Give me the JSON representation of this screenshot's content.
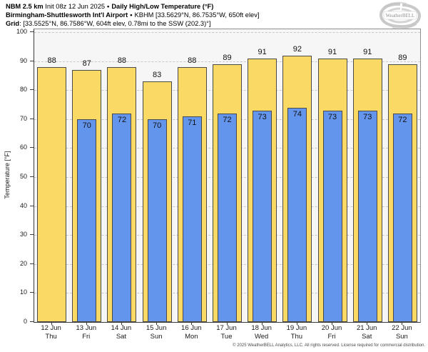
{
  "header": {
    "model": "NBM 2.5 km",
    "init": "Init 08z 12 Jun 2025",
    "separator": "•",
    "product": "Daily High/Low Temperature (°F)",
    "station": "Birmingham-Shuttlesworth Int'l Airport",
    "station_info": "KBHM [33.5629°N, 86.7535°W, 650ft elev]",
    "grid_label": "Grid",
    "grid_info": ": [33.5525°N, 86.7586°W, 604ft elev, 0.78mi to the SSW (202.3)°]"
  },
  "logo": {
    "text": "WeatherBELL"
  },
  "chart_data": {
    "type": "bar",
    "title": "Daily High/Low Temperature (°F)",
    "categories": [
      "12 Jun",
      "13 Jun",
      "14 Jun",
      "15 Jun",
      "16 Jun",
      "17 Jun",
      "18 Jun",
      "19 Jun",
      "20 Jun",
      "21 Jun",
      "22 Jun"
    ],
    "category_days": [
      "Thu",
      "Fri",
      "Sat",
      "Sun",
      "Mon",
      "Tue",
      "Wed",
      "Thu",
      "Fri",
      "Sat",
      "Sun"
    ],
    "series": [
      {
        "name": "High",
        "color": "#fbd965",
        "values": [
          88,
          87,
          88,
          83,
          88,
          89,
          91,
          92,
          91,
          91,
          89
        ]
      },
      {
        "name": "Low",
        "color": "#6495ed",
        "values": [
          null,
          70,
          72,
          70,
          71,
          72,
          73,
          74,
          73,
          73,
          72
        ]
      }
    ],
    "xlabel": "",
    "ylabel": "Temperature [°F]",
    "ylim": [
      0,
      101
    ],
    "yticks": [
      0,
      10,
      20,
      30,
      40,
      50,
      60,
      70,
      80,
      90,
      100
    ],
    "grid": "horizontal-dashed",
    "bar_edge_color": "#4a4a4a",
    "plot_background": "#f6f6f6"
  },
  "footer": {
    "copyright": "© 2025 WeatherBELL Analytics, LLC. All rights reserved. License required for commercial distribution."
  }
}
